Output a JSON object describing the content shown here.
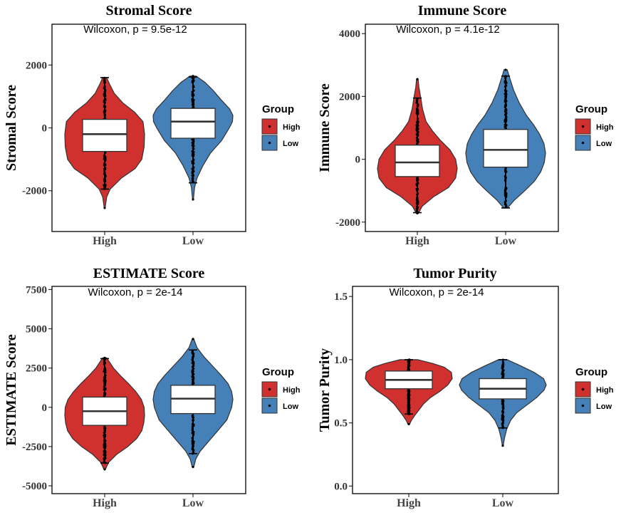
{
  "chart_data": [
    {
      "type": "violin",
      "title": "Stromal Score",
      "xlabel": "",
      "ylabel": "Stromal Score",
      "ylim": [
        -3300,
        3300
      ],
      "yticks": [
        -2000,
        0,
        2000
      ],
      "categories": [
        "High",
        "Low"
      ],
      "annotation": "Wilcoxon, p = 9.5e-12",
      "legend": {
        "title": "Group",
        "entries": [
          "High",
          "Low"
        ],
        "position": "right"
      },
      "colors": {
        "High": "#d0302e",
        "Low": "#4580b8"
      },
      "groups": [
        {
          "name": "High",
          "min": -2550,
          "whisker_low": -1950,
          "q1": -750,
          "median": -200,
          "q3": 270,
          "whisker_high": 1600,
          "max": 1600,
          "violin": [
            [
              -2550,
              0.01
            ],
            [
              -2200,
              0.05
            ],
            [
              -1950,
              0.14
            ],
            [
              -1600,
              0.42
            ],
            [
              -1300,
              0.76
            ],
            [
              -1000,
              0.93
            ],
            [
              -600,
              0.99
            ],
            [
              -200,
              1.0
            ],
            [
              200,
              0.96
            ],
            [
              500,
              0.75
            ],
            [
              800,
              0.45
            ],
            [
              1100,
              0.24
            ],
            [
              1400,
              0.12
            ],
            [
              1600,
              0.05
            ]
          ]
        },
        {
          "name": "Low",
          "min": -2280,
          "whisker_low": -1750,
          "q1": -330,
          "median": 200,
          "q3": 620,
          "whisker_high": 1620,
          "max": 1650,
          "violin": [
            [
              -2280,
              0.01
            ],
            [
              -1900,
              0.04
            ],
            [
              -1600,
              0.1
            ],
            [
              -1200,
              0.25
            ],
            [
              -800,
              0.44
            ],
            [
              -400,
              0.72
            ],
            [
              0,
              0.91
            ],
            [
              200,
              0.99
            ],
            [
              400,
              1.0
            ],
            [
              600,
              0.92
            ],
            [
              900,
              0.7
            ],
            [
              1200,
              0.5
            ],
            [
              1450,
              0.3
            ],
            [
              1650,
              0.08
            ]
          ]
        }
      ]
    },
    {
      "type": "violin",
      "title": "Immune Score",
      "xlabel": "",
      "ylabel": "Immune Score",
      "ylim": [
        -2300,
        4300
      ],
      "yticks": [
        -2000,
        0,
        2000,
        4000
      ],
      "categories": [
        "High",
        "Low"
      ],
      "annotation": "Wilcoxon, p = 4.1e-12",
      "legend": {
        "title": "Group",
        "entries": [
          "High",
          "Low"
        ],
        "position": "right"
      },
      "colors": {
        "High": "#d0302e",
        "Low": "#4580b8"
      },
      "groups": [
        {
          "name": "High",
          "min": -1720,
          "whisker_low": -1700,
          "q1": -550,
          "median": -100,
          "q3": 450,
          "whisker_high": 1950,
          "max": 2550,
          "violin": [
            [
              -1720,
              0.03
            ],
            [
              -1500,
              0.12
            ],
            [
              -1200,
              0.4
            ],
            [
              -900,
              0.78
            ],
            [
              -600,
              0.96
            ],
            [
              -300,
              1.0
            ],
            [
              0,
              0.96
            ],
            [
              300,
              0.82
            ],
            [
              600,
              0.58
            ],
            [
              900,
              0.38
            ],
            [
              1200,
              0.22
            ],
            [
              1600,
              0.13
            ],
            [
              2000,
              0.08
            ],
            [
              2300,
              0.04
            ],
            [
              2550,
              0.02
            ]
          ]
        },
        {
          "name": "Low",
          "min": -1550,
          "whisker_low": -1550,
          "q1": -250,
          "median": 300,
          "q3": 950,
          "whisker_high": 2650,
          "max": 2850,
          "violin": [
            [
              -1550,
              0.05
            ],
            [
              -1300,
              0.22
            ],
            [
              -1000,
              0.48
            ],
            [
              -700,
              0.72
            ],
            [
              -400,
              0.88
            ],
            [
              -100,
              0.97
            ],
            [
              200,
              1.0
            ],
            [
              500,
              0.96
            ],
            [
              800,
              0.85
            ],
            [
              1100,
              0.7
            ],
            [
              1400,
              0.52
            ],
            [
              1800,
              0.34
            ],
            [
              2200,
              0.2
            ],
            [
              2600,
              0.1
            ],
            [
              2850,
              0.04
            ]
          ]
        }
      ]
    },
    {
      "type": "violin",
      "title": "ESTIMATE Score",
      "xlabel": "",
      "ylabel": "ESTIMATE Score",
      "ylim": [
        -5500,
        7700
      ],
      "yticks": [
        -5000,
        -2500,
        0,
        2500,
        5000,
        7500
      ],
      "categories": [
        "High",
        "Low"
      ],
      "annotation": "Wilcoxon, p = 2e-14",
      "legend": {
        "title": "Group",
        "entries": [
          "High",
          "Low"
        ],
        "position": "right"
      },
      "colors": {
        "High": "#d0302e",
        "Low": "#4580b8"
      },
      "groups": [
        {
          "name": "High",
          "min": -3950,
          "whisker_low": -3550,
          "q1": -1150,
          "median": -250,
          "q3": 650,
          "whisker_high": 3100,
          "max": 3150,
          "violin": [
            [
              -3950,
              0.02
            ],
            [
              -3500,
              0.1
            ],
            [
              -3000,
              0.3
            ],
            [
              -2500,
              0.58
            ],
            [
              -2000,
              0.8
            ],
            [
              -1500,
              0.93
            ],
            [
              -1000,
              0.98
            ],
            [
              -500,
              1.0
            ],
            [
              0,
              0.99
            ],
            [
              500,
              0.92
            ],
            [
              1000,
              0.78
            ],
            [
              1500,
              0.6
            ],
            [
              2000,
              0.4
            ],
            [
              2500,
              0.22
            ],
            [
              3150,
              0.05
            ]
          ]
        },
        {
          "name": "Low",
          "min": -3800,
          "whisker_low": -2950,
          "q1": -400,
          "median": 550,
          "q3": 1400,
          "whisker_high": 3650,
          "max": 4350,
          "violin": [
            [
              -3800,
              0.02
            ],
            [
              -3300,
              0.07
            ],
            [
              -2800,
              0.18
            ],
            [
              -2200,
              0.38
            ],
            [
              -1500,
              0.62
            ],
            [
              -800,
              0.85
            ],
            [
              0,
              0.97
            ],
            [
              500,
              1.0
            ],
            [
              1000,
              0.97
            ],
            [
              1500,
              0.88
            ],
            [
              2000,
              0.72
            ],
            [
              2600,
              0.5
            ],
            [
              3200,
              0.28
            ],
            [
              3800,
              0.1
            ],
            [
              4350,
              0.02
            ]
          ]
        }
      ]
    },
    {
      "type": "violin",
      "title": "Tumor Purity",
      "xlabel": "",
      "ylabel": "Tumor Purity",
      "ylim": [
        -0.06,
        1.58
      ],
      "yticks": [
        0.0,
        0.5,
        1.0,
        1.5
      ],
      "tick_labels": [
        "0.0",
        "0.5",
        "1.0",
        "1.5"
      ],
      "categories": [
        "High",
        "Low"
      ],
      "annotation": "Wilcoxon, p = 2e-14",
      "legend": {
        "title": "Group",
        "entries": [
          "High",
          "Low"
        ],
        "position": "right"
      },
      "colors": {
        "High": "#d0302e",
        "Low": "#4580b8"
      },
      "groups": [
        {
          "name": "High",
          "min": 0.49,
          "whisker_low": 0.57,
          "q1": 0.77,
          "median": 0.84,
          "q3": 0.91,
          "whisker_high": 1.0,
          "max": 1.0,
          "violin": [
            [
              0.49,
              0.02
            ],
            [
              0.52,
              0.06
            ],
            [
              0.56,
              0.14
            ],
            [
              0.6,
              0.23
            ],
            [
              0.65,
              0.34
            ],
            [
              0.7,
              0.5
            ],
            [
              0.75,
              0.72
            ],
            [
              0.8,
              0.9
            ],
            [
              0.85,
              1.0
            ],
            [
              0.9,
              0.98
            ],
            [
              0.94,
              0.82
            ],
            [
              0.97,
              0.55
            ],
            [
              1.0,
              0.2
            ]
          ]
        },
        {
          "name": "Low",
          "min": 0.32,
          "whisker_low": 0.46,
          "q1": 0.69,
          "median": 0.77,
          "q3": 0.85,
          "whisker_high": 1.0,
          "max": 1.0,
          "violin": [
            [
              0.32,
              0.01
            ],
            [
              0.38,
              0.04
            ],
            [
              0.45,
              0.09
            ],
            [
              0.52,
              0.18
            ],
            [
              0.58,
              0.32
            ],
            [
              0.64,
              0.55
            ],
            [
              0.7,
              0.78
            ],
            [
              0.76,
              0.95
            ],
            [
              0.8,
              1.0
            ],
            [
              0.85,
              0.94
            ],
            [
              0.9,
              0.72
            ],
            [
              0.95,
              0.42
            ],
            [
              1.0,
              0.1
            ]
          ]
        }
      ]
    }
  ]
}
